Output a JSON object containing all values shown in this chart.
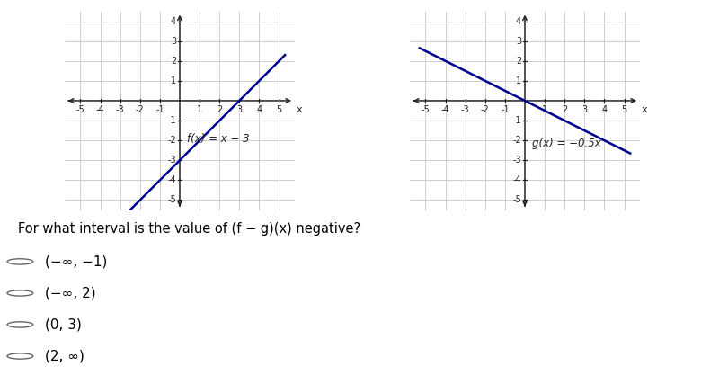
{
  "fx_label": "f(x) = x − 3",
  "gx_label": "g(x) = −0.5x",
  "fx_slope": 1,
  "fx_intercept": -3,
  "gx_slope": -0.5,
  "gx_intercept": 0,
  "xlim": [
    -5.8,
    5.8
  ],
  "ylim": [
    -5.5,
    4.5
  ],
  "xticks": [
    -5,
    -4,
    -3,
    -2,
    -1,
    1,
    2,
    3,
    4,
    5
  ],
  "yticks": [
    -5,
    -4,
    -3,
    -2,
    -1,
    1,
    2,
    3,
    4
  ],
  "fx_x_start": -2.5,
  "fx_x_end": 5.3,
  "gx_x_start": -5.3,
  "gx_x_end": 5.3,
  "line_color": "#00008B",
  "grid_color": "#c8c8c8",
  "axis_color": "#222222",
  "bg_color": "#ffffff",
  "question": "For what interval is the value of (f − g)(x) negative?",
  "choices": [
    "(−∞, −1)",
    "(−∞, 2)",
    "(0, 3)",
    "(2, ∞)"
  ],
  "tick_fontsize": 7.0,
  "label_fontsize": 8.5,
  "question_fontsize": 10.5,
  "choice_fontsize": 11.0
}
